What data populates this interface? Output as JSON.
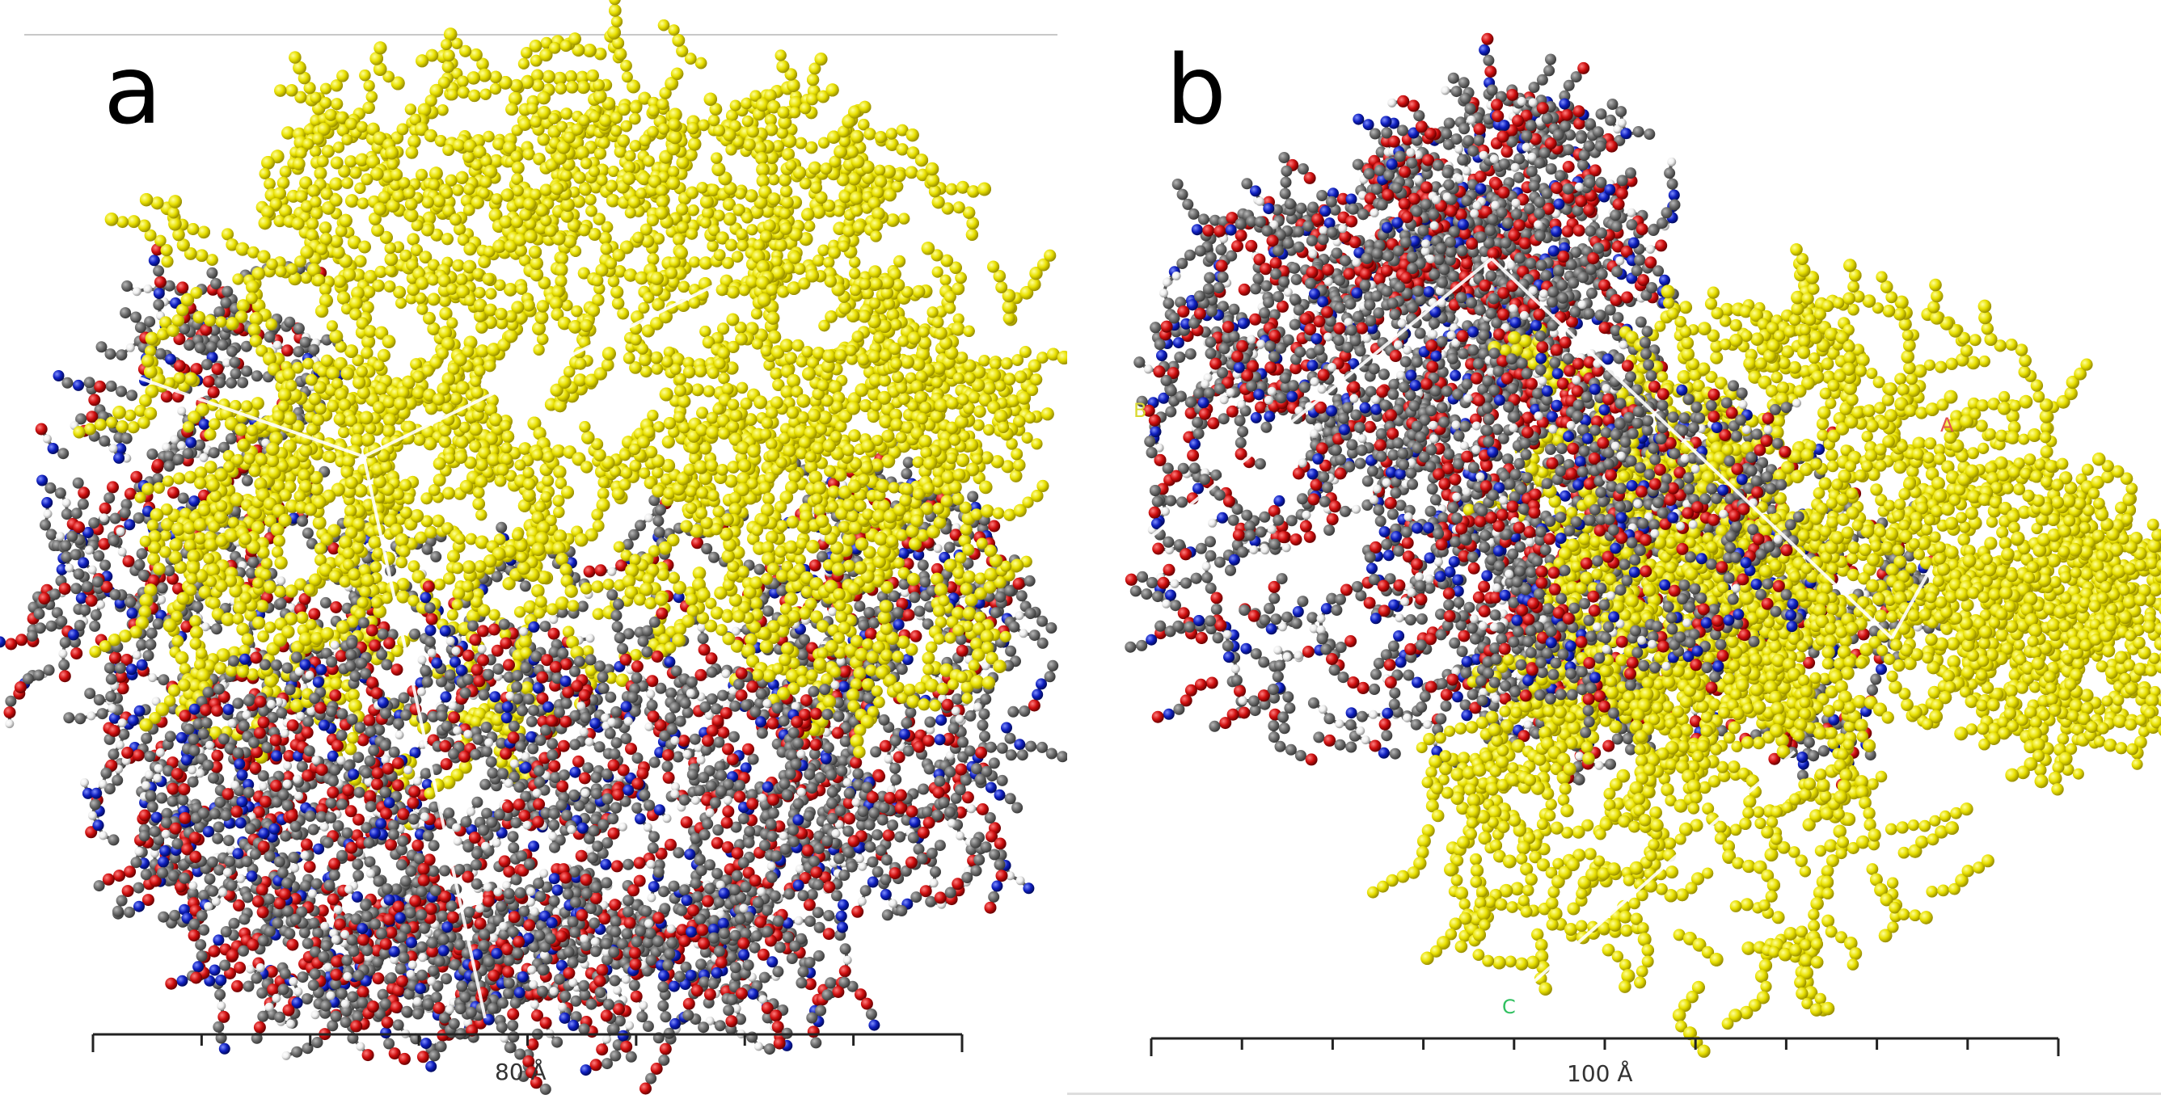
{
  "panels": [
    {
      "id": "a",
      "label": "a",
      "scale_bar": {
        "text": "80 Å"
      },
      "axis_labels": []
    },
    {
      "id": "b",
      "label": "b",
      "scale_bar": {
        "text": "100 Å"
      },
      "axis_labels": [
        {
          "id": "a-axis",
          "text": "A",
          "color": "#e05050"
        },
        {
          "id": "c-axis",
          "text": "C",
          "color": "#30c060"
        },
        {
          "id": "b-axis",
          "text": "B",
          "color": "#d8d830"
        }
      ]
    }
  ],
  "atom_colors": {
    "polymer": "#e8e000",
    "carbon": "#6e6e6e",
    "oxygen": "#d01010",
    "nitrogen": "#1020c0",
    "hydrogen": "#eeeeee"
  }
}
